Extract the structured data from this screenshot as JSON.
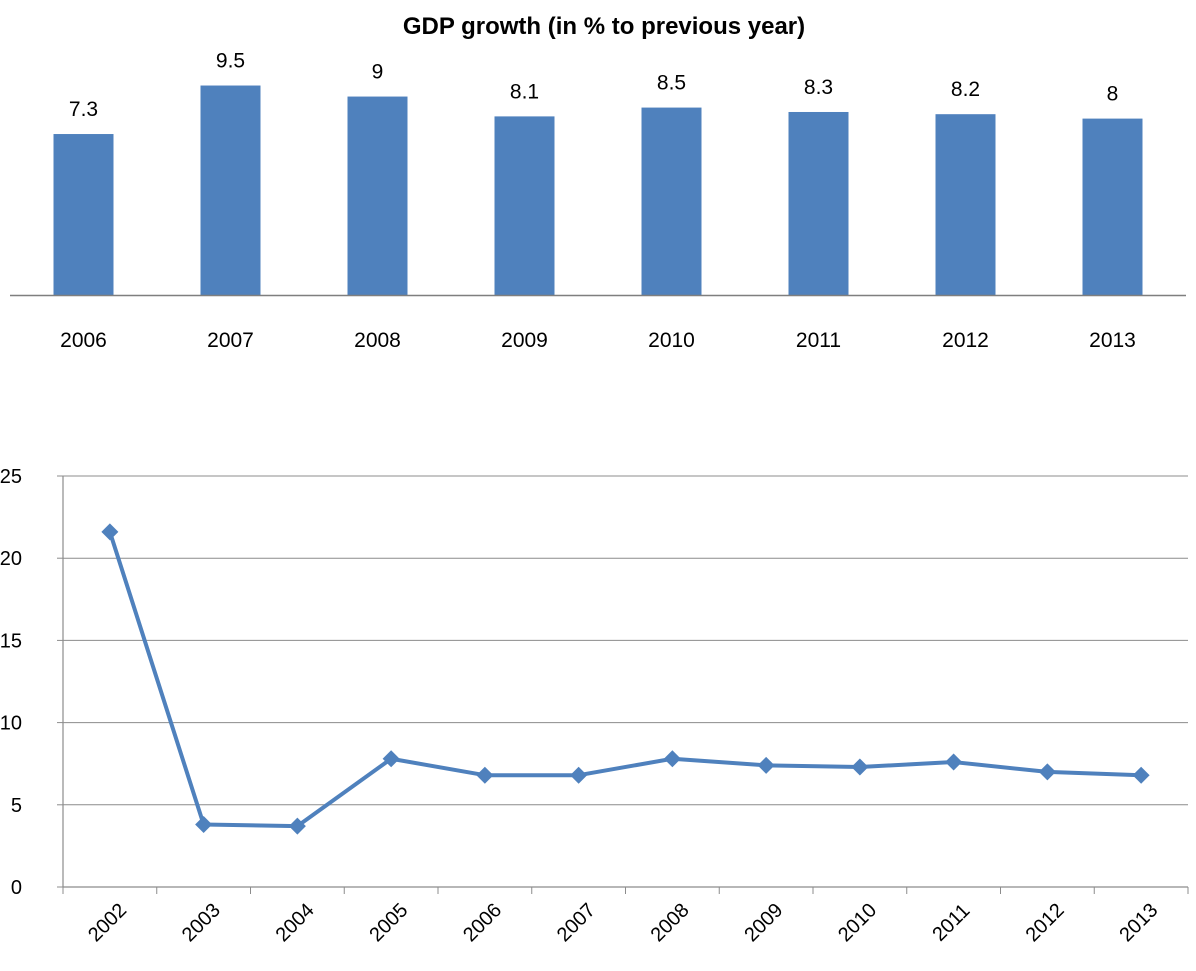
{
  "chart_data": [
    {
      "type": "bar",
      "title": "GDP growth (in % to previous year)",
      "categories": [
        "2006",
        "2007",
        "2008",
        "2009",
        "2010",
        "2011",
        "2012",
        "2013"
      ],
      "values": [
        7.3,
        9.5,
        9,
        8.1,
        8.5,
        8.3,
        8.2,
        8
      ],
      "data_labels": [
        "7.3",
        "9.5",
        "9",
        "8.1",
        "8.5",
        "8.3",
        "8.2",
        "8"
      ],
      "xlabel": "",
      "ylabel": "",
      "ylim": [
        0,
        12
      ],
      "grid": false,
      "legend": "none",
      "color": "#4F81BD"
    },
    {
      "type": "line",
      "title": "",
      "x": [
        "2002",
        "2003",
        "2004",
        "2005",
        "2006",
        "2007",
        "2008",
        "2009",
        "2010",
        "2011",
        "2012",
        "2013"
      ],
      "values": [
        21.6,
        3.8,
        3.7,
        7.8,
        6.8,
        6.8,
        7.8,
        7.4,
        7.3,
        7.6,
        7.0,
        6.8
      ],
      "xlabel": "",
      "ylabel": "",
      "ylim": [
        0,
        25
      ],
      "yticks": [
        "0",
        "5",
        "10",
        "15",
        "20",
        "25"
      ],
      "grid": true,
      "marker": "diamond",
      "legend": "none",
      "color": "#4F81BD"
    }
  ]
}
